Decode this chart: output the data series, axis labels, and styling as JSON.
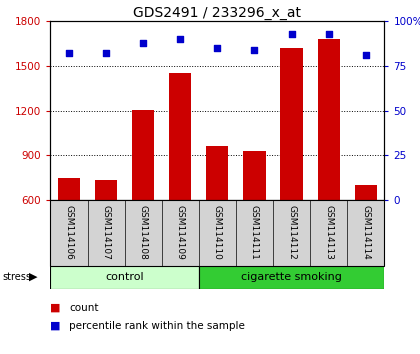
{
  "title": "GDS2491 / 233296_x_at",
  "samples": [
    "GSM114106",
    "GSM114107",
    "GSM114108",
    "GSM114109",
    "GSM114110",
    "GSM114111",
    "GSM114112",
    "GSM114113",
    "GSM114114"
  ],
  "counts": [
    750,
    735,
    1205,
    1455,
    960,
    930,
    1620,
    1680,
    700
  ],
  "percentile_ranks": [
    82,
    82,
    88,
    90,
    85,
    84,
    93,
    93,
    81
  ],
  "ylim_left": [
    600,
    1800
  ],
  "ylim_right": [
    0,
    100
  ],
  "yticks_left": [
    600,
    900,
    1200,
    1500,
    1800
  ],
  "yticks_right": [
    0,
    25,
    50,
    75,
    100
  ],
  "bar_color": "#cc0000",
  "dot_color": "#0000cc",
  "bar_bottom": 600,
  "control_color_light": "#ccffcc",
  "control_color": "#aaffaa",
  "smoking_color": "#33cc33",
  "label_bg_color": "#d3d3d3",
  "title_fontsize": 10,
  "axis_label_color_left": "#cc0000",
  "axis_label_color_right": "#0000cc"
}
